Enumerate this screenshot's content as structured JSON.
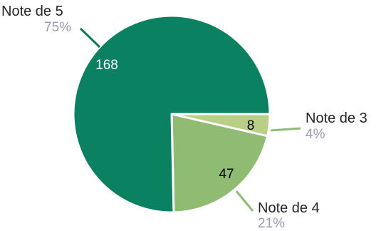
{
  "chart_data": {
    "type": "pie",
    "title": "",
    "slices": [
      {
        "name": "Note de 3",
        "value": 8,
        "percent": "4%",
        "color": "#b9cf86",
        "value_text_color": "#000000"
      },
      {
        "name": "Note de 4",
        "value": 47,
        "percent": "21%",
        "color": "#8fbb72",
        "value_text_color": "#000000"
      },
      {
        "name": "Note de 5",
        "value": 168,
        "percent": "75%",
        "color": "#0a8262",
        "value_text_color": "#ffffff"
      }
    ],
    "leader_line_color": "#8fbb72",
    "leader_line_color_major": "#0a7a5b"
  }
}
